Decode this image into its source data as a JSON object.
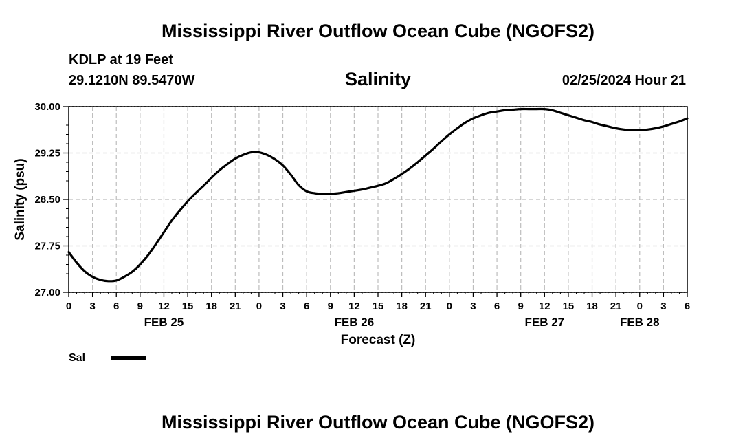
{
  "header": {
    "title": "Mississippi River Outflow Ocean Cube (NGOFS2)",
    "station": "KDLP at 19 Feet",
    "location": "29.1210N  89.5470W",
    "parameter": "Salinity",
    "datetime": "02/25/2024 Hour 21"
  },
  "footer": {
    "title": "Mississippi River Outflow Ocean Cube (NGOFS2)"
  },
  "chart_data": {
    "type": "line",
    "title": "Salinity",
    "xlabel": "Forecast (Z)",
    "ylabel": "Salinity (psu)",
    "x_unit": "hours from FEB 25 00Z",
    "xlim": [
      0,
      78
    ],
    "ylim": [
      27.0,
      30.0
    ],
    "y_ticks": [
      "27.00",
      "27.75",
      "28.50",
      "29.25",
      "30.00"
    ],
    "x_tick_labels": [
      "0",
      "3",
      "6",
      "9",
      "12",
      "15",
      "18",
      "21",
      "0",
      "3",
      "6",
      "9",
      "12",
      "15",
      "18",
      "21",
      "0",
      "3",
      "6",
      "9",
      "12",
      "15",
      "18",
      "21",
      "0",
      "3",
      "6"
    ],
    "date_labels": [
      {
        "label": "FEB 25",
        "hour": 12
      },
      {
        "label": "FEB 26",
        "hour": 36
      },
      {
        "label": "FEB 27",
        "hour": 60
      },
      {
        "label": "FEB 28",
        "hour": 72
      }
    ],
    "grid": true,
    "legend": "bottom-left",
    "series": [
      {
        "name": "Sal",
        "color": "#000000",
        "x": [
          0,
          1,
          2,
          3,
          4,
          5,
          6,
          7,
          8,
          9,
          10,
          11,
          12,
          13,
          14,
          15,
          16,
          17,
          18,
          19,
          20,
          21,
          22,
          23,
          24,
          25,
          26,
          27,
          28,
          29,
          30,
          31,
          32,
          33,
          34,
          35,
          36,
          37,
          38,
          39,
          40,
          41,
          42,
          43,
          44,
          45,
          46,
          47,
          48,
          49,
          50,
          51,
          52,
          53,
          54,
          55,
          56,
          57,
          58,
          59,
          60,
          61,
          62,
          63,
          64,
          65,
          66,
          67,
          68,
          69,
          70,
          71,
          72,
          73,
          74,
          75,
          76,
          77,
          78
        ],
        "values": [
          27.65,
          27.48,
          27.34,
          27.25,
          27.2,
          27.18,
          27.19,
          27.25,
          27.33,
          27.45,
          27.6,
          27.78,
          27.97,
          28.16,
          28.32,
          28.47,
          28.6,
          28.72,
          28.85,
          28.97,
          29.07,
          29.16,
          29.22,
          29.26,
          29.26,
          29.22,
          29.15,
          29.05,
          28.9,
          28.73,
          28.63,
          28.6,
          28.59,
          28.59,
          28.6,
          28.62,
          28.64,
          28.66,
          28.69,
          28.72,
          28.76,
          28.83,
          28.91,
          29.0,
          29.1,
          29.21,
          29.32,
          29.44,
          29.55,
          29.65,
          29.74,
          29.81,
          29.86,
          29.9,
          29.92,
          29.94,
          29.95,
          29.96,
          29.96,
          29.96,
          29.96,
          29.94,
          29.9,
          29.86,
          29.82,
          29.78,
          29.75,
          29.71,
          29.68,
          29.65,
          29.63,
          29.62,
          29.62,
          29.63,
          29.65,
          29.68,
          29.72,
          29.76,
          29.81
        ]
      }
    ]
  }
}
